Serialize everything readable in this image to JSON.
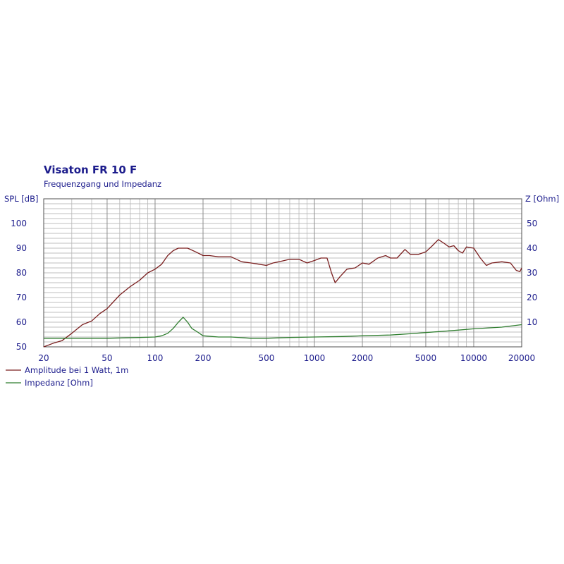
{
  "chart_data": {
    "type": "line",
    "title": "Visaton FR 10 F",
    "subtitle": "Frequenzgang und Impedanz",
    "x_scale": "log",
    "xlim": [
      20,
      20000
    ],
    "x_ticks": [
      20,
      50,
      100,
      200,
      500,
      1000,
      2000,
      5000,
      10000,
      20000
    ],
    "x_tick_labels": [
      "20",
      "50",
      "100",
      "200",
      "500",
      "1000",
      "2000",
      "5000",
      "10000",
      "20000"
    ],
    "y_left": {
      "label": "SPL [dB]",
      "lim": [
        50,
        110
      ],
      "ticks": [
        50,
        60,
        70,
        80,
        90,
        100
      ],
      "tick_labels": [
        "50",
        "60",
        "70",
        "80",
        "90",
        "100"
      ]
    },
    "y_right": {
      "label": "Z [Ohm]",
      "lim": [
        0,
        60
      ],
      "ticks": [
        10,
        20,
        30,
        40,
        50
      ],
      "tick_labels": [
        "10",
        "20",
        "30",
        "40",
        "50"
      ]
    },
    "grid": true,
    "legend_position": "bottom-left",
    "series": [
      {
        "name": "Amplitude bei 1 Watt, 1m",
        "axis": "left",
        "color": "#7a1f1f",
        "points": [
          [
            20,
            50
          ],
          [
            23,
            51.5
          ],
          [
            26,
            52.5
          ],
          [
            30,
            55.5
          ],
          [
            35,
            59
          ],
          [
            40,
            60.5
          ],
          [
            45,
            63.5
          ],
          [
            50,
            65.5
          ],
          [
            60,
            71
          ],
          [
            70,
            74.5
          ],
          [
            80,
            77
          ],
          [
            90,
            80
          ],
          [
            100,
            81.5
          ],
          [
            110,
            83.5
          ],
          [
            120,
            87
          ],
          [
            130,
            89
          ],
          [
            140,
            90
          ],
          [
            160,
            90
          ],
          [
            180,
            88.5
          ],
          [
            200,
            87
          ],
          [
            220,
            87
          ],
          [
            250,
            86.5
          ],
          [
            300,
            86.5
          ],
          [
            350,
            84.5
          ],
          [
            400,
            84
          ],
          [
            450,
            83.5
          ],
          [
            500,
            83
          ],
          [
            550,
            84
          ],
          [
            600,
            84.5
          ],
          [
            700,
            85.5
          ],
          [
            800,
            85.5
          ],
          [
            900,
            84
          ],
          [
            1000,
            85
          ],
          [
            1100,
            86
          ],
          [
            1200,
            86
          ],
          [
            1280,
            80
          ],
          [
            1350,
            76
          ],
          [
            1450,
            78.5
          ],
          [
            1600,
            81.5
          ],
          [
            1800,
            82
          ],
          [
            2000,
            84
          ],
          [
            2200,
            83.5
          ],
          [
            2500,
            86
          ],
          [
            2800,
            87
          ],
          [
            3000,
            86
          ],
          [
            3300,
            86
          ],
          [
            3700,
            89.5
          ],
          [
            4000,
            87.5
          ],
          [
            4500,
            87.5
          ],
          [
            5000,
            88.5
          ],
          [
            5500,
            91
          ],
          [
            6000,
            93.5
          ],
          [
            6500,
            92
          ],
          [
            7000,
            90.5
          ],
          [
            7500,
            91
          ],
          [
            8000,
            89
          ],
          [
            8500,
            88
          ],
          [
            9000,
            90.5
          ],
          [
            10000,
            90
          ],
          [
            11000,
            86
          ],
          [
            12000,
            83
          ],
          [
            13000,
            84
          ],
          [
            15000,
            84.5
          ],
          [
            17000,
            84
          ],
          [
            18500,
            81
          ],
          [
            19500,
            80.5
          ],
          [
            20000,
            82
          ]
        ]
      },
      {
        "name": "Impedanz [Ohm]",
        "axis": "right",
        "color": "#2e7d2e",
        "points": [
          [
            20,
            3.5
          ],
          [
            50,
            3.5
          ],
          [
            80,
            3.8
          ],
          [
            100,
            4
          ],
          [
            110,
            4.5
          ],
          [
            120,
            5.5
          ],
          [
            130,
            7.5
          ],
          [
            140,
            10
          ],
          [
            150,
            12
          ],
          [
            160,
            10
          ],
          [
            170,
            7.5
          ],
          [
            185,
            6
          ],
          [
            200,
            4.5
          ],
          [
            250,
            4
          ],
          [
            300,
            4
          ],
          [
            400,
            3.5
          ],
          [
            500,
            3.5
          ],
          [
            700,
            3.8
          ],
          [
            1000,
            4
          ],
          [
            1500,
            4.2
          ],
          [
            2000,
            4.5
          ],
          [
            3000,
            4.8
          ],
          [
            4000,
            5.3
          ],
          [
            5000,
            5.8
          ],
          [
            7000,
            6.5
          ],
          [
            10000,
            7.3
          ],
          [
            15000,
            8
          ],
          [
            20000,
            9
          ]
        ]
      }
    ]
  }
}
